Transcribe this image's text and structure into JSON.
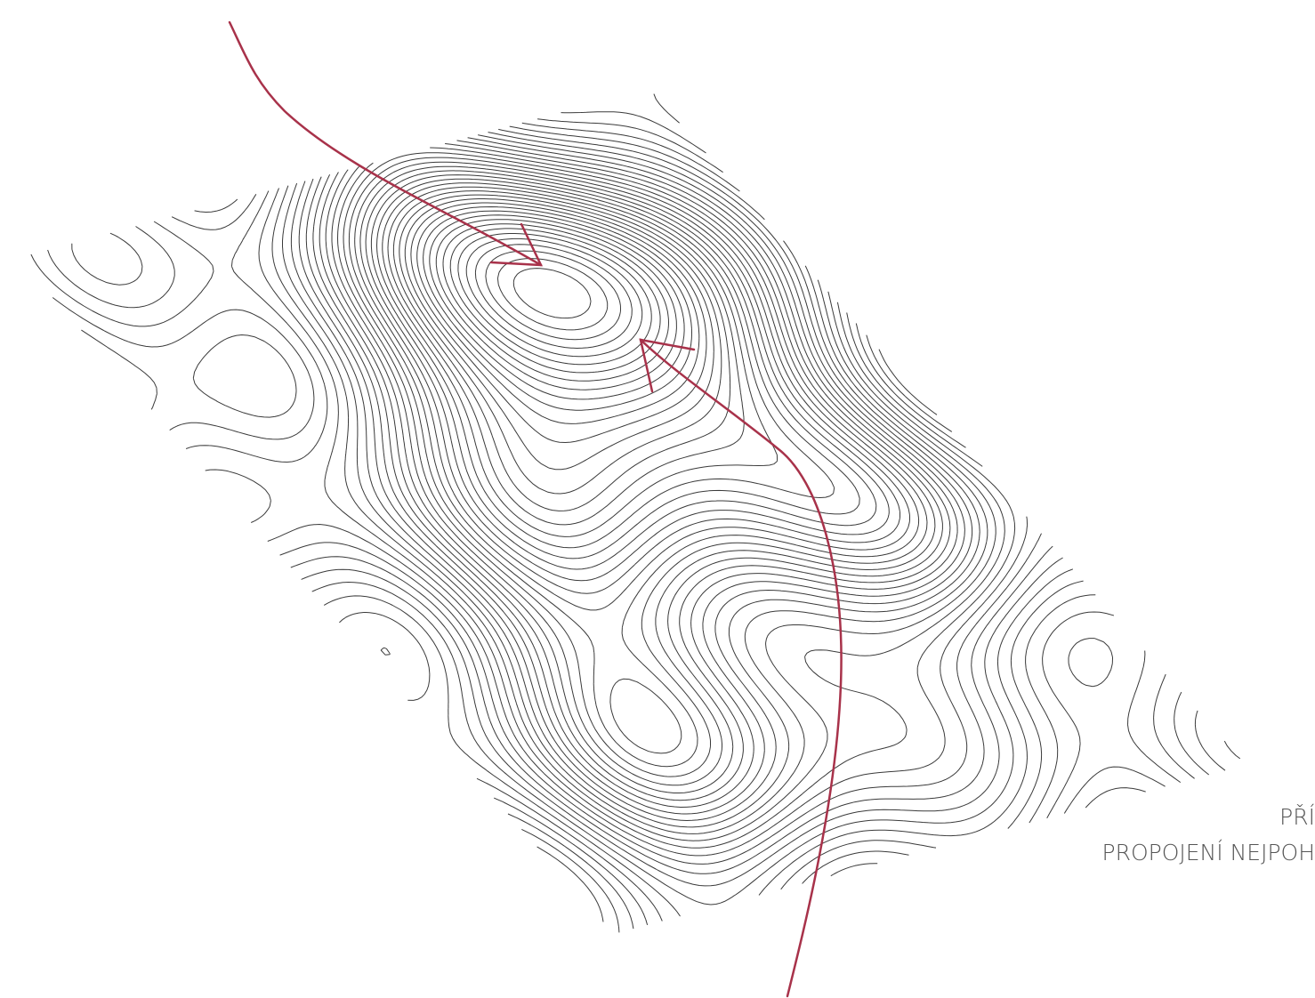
{
  "annotation": {
    "lines": [
      "PŘÍ",
      "PROPOJENÍ NEJPOH"
    ]
  }
}
